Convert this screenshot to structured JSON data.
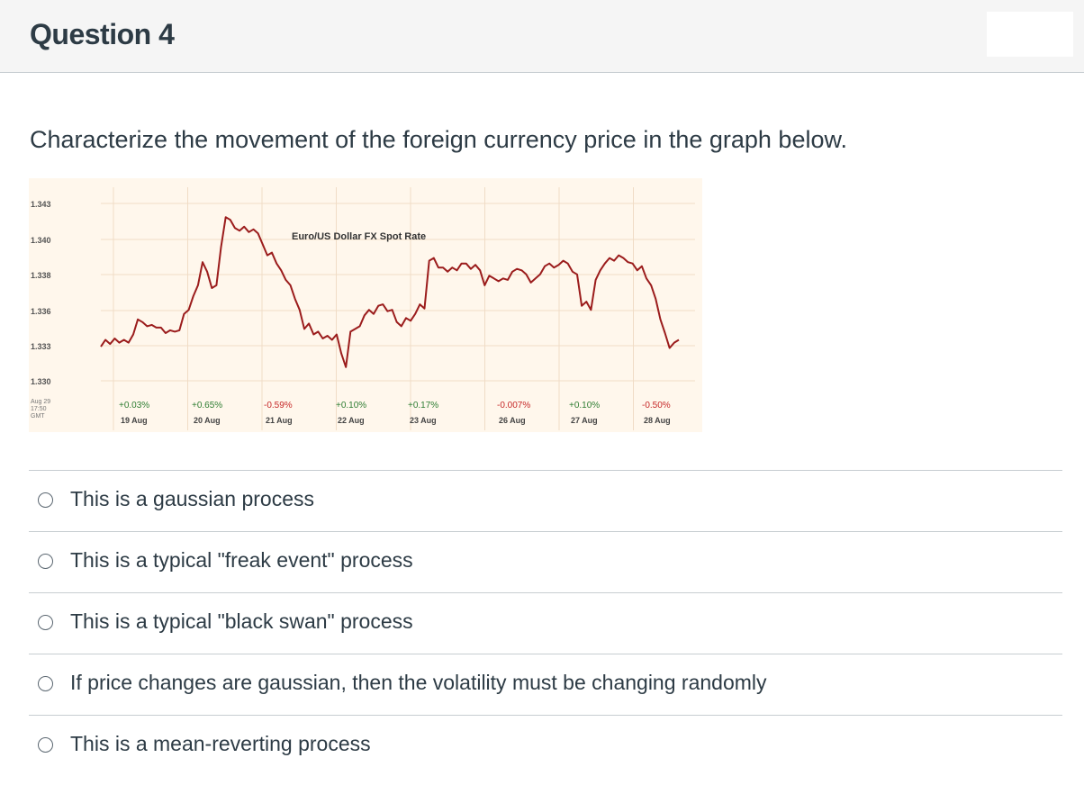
{
  "header": {
    "title": "Question 4"
  },
  "question": {
    "prompt": "Characterize the movement of the foreign currency price in the graph below."
  },
  "chart_data": {
    "type": "line",
    "title": "Euro/US Dollar FX Spot Rate",
    "y_ticks": [
      "1.343",
      "1.340",
      "1.338",
      "1.336",
      "1.333",
      "1.330"
    ],
    "ylim": [
      1.3295,
      1.344
    ],
    "corner_label": [
      "Aug 29",
      "17:50",
      "GMT"
    ],
    "days": [
      {
        "date": "19 Aug",
        "change": "+0.03%"
      },
      {
        "date": "20 Aug",
        "change": "+0.65%"
      },
      {
        "date": "21 Aug",
        "change": "-0.59%"
      },
      {
        "date": "22 Aug",
        "change": "+0.10%"
      },
      {
        "date": "23 Aug",
        "change": "+0.17%"
      },
      {
        "date": "26 Aug",
        "change": "-0.007%"
      },
      {
        "date": "27 Aug",
        "change": "+0.10%"
      },
      {
        "date": "28 Aug",
        "change": "-0.50%"
      }
    ],
    "series": [
      {
        "name": "EUR/USD",
        "values": [
          1.3325,
          1.333,
          1.3327,
          1.3331,
          1.3328,
          1.333,
          1.3328,
          1.3334,
          1.3345,
          1.3343,
          1.334,
          1.3341,
          1.3339,
          1.3339,
          1.3335,
          1.3337,
          1.3336,
          1.3337,
          1.3349,
          1.3352,
          1.3362,
          1.337,
          1.3387,
          1.338,
          1.3368,
          1.337,
          1.3398,
          1.342,
          1.3418,
          1.3412,
          1.341,
          1.3413,
          1.3409,
          1.3411,
          1.3408,
          1.34,
          1.3392,
          1.3394,
          1.3386,
          1.3381,
          1.3374,
          1.337,
          1.336,
          1.3352,
          1.3338,
          1.3342,
          1.3334,
          1.3336,
          1.3331,
          1.3333,
          1.333,
          1.3334,
          1.332,
          1.331,
          1.3336,
          1.3338,
          1.334,
          1.3348,
          1.3352,
          1.3349,
          1.3355,
          1.3356,
          1.3351,
          1.3352,
          1.3343,
          1.334,
          1.3346,
          1.3344,
          1.3349,
          1.3356,
          1.3353,
          1.3388,
          1.339,
          1.3383,
          1.3383,
          1.338,
          1.3383,
          1.3381,
          1.3386,
          1.3386,
          1.3382,
          1.3385,
          1.3381,
          1.337,
          1.3377,
          1.3375,
          1.3373,
          1.3375,
          1.3374,
          1.338,
          1.3382,
          1.3381,
          1.3378,
          1.3372,
          1.3375,
          1.3378,
          1.3384,
          1.3386,
          1.3383,
          1.3385,
          1.3388,
          1.3386,
          1.338,
          1.3378,
          1.3355,
          1.3358,
          1.3352,
          1.3374,
          1.3381,
          1.3386,
          1.339,
          1.3388,
          1.3392,
          1.339,
          1.3387,
          1.3386,
          1.3381,
          1.3384,
          1.3375,
          1.337,
          1.336,
          1.3345,
          1.3335,
          1.3324,
          1.3328,
          1.333
        ]
      }
    ],
    "grid": true
  },
  "answers": [
    {
      "label": "This is a gaussian process"
    },
    {
      "label": "This is a typical \"freak event\" process"
    },
    {
      "label": "This is a typical \"black swan\" process"
    },
    {
      "label": "If price changes are gaussian, then the volatility must be changing randomly"
    },
    {
      "label": "This is a mean-reverting process"
    }
  ],
  "colors": {
    "line": "#9b1c1c",
    "positive": "#2e7d32",
    "negative": "#c62828",
    "chart_bg": "#fff7ec"
  }
}
